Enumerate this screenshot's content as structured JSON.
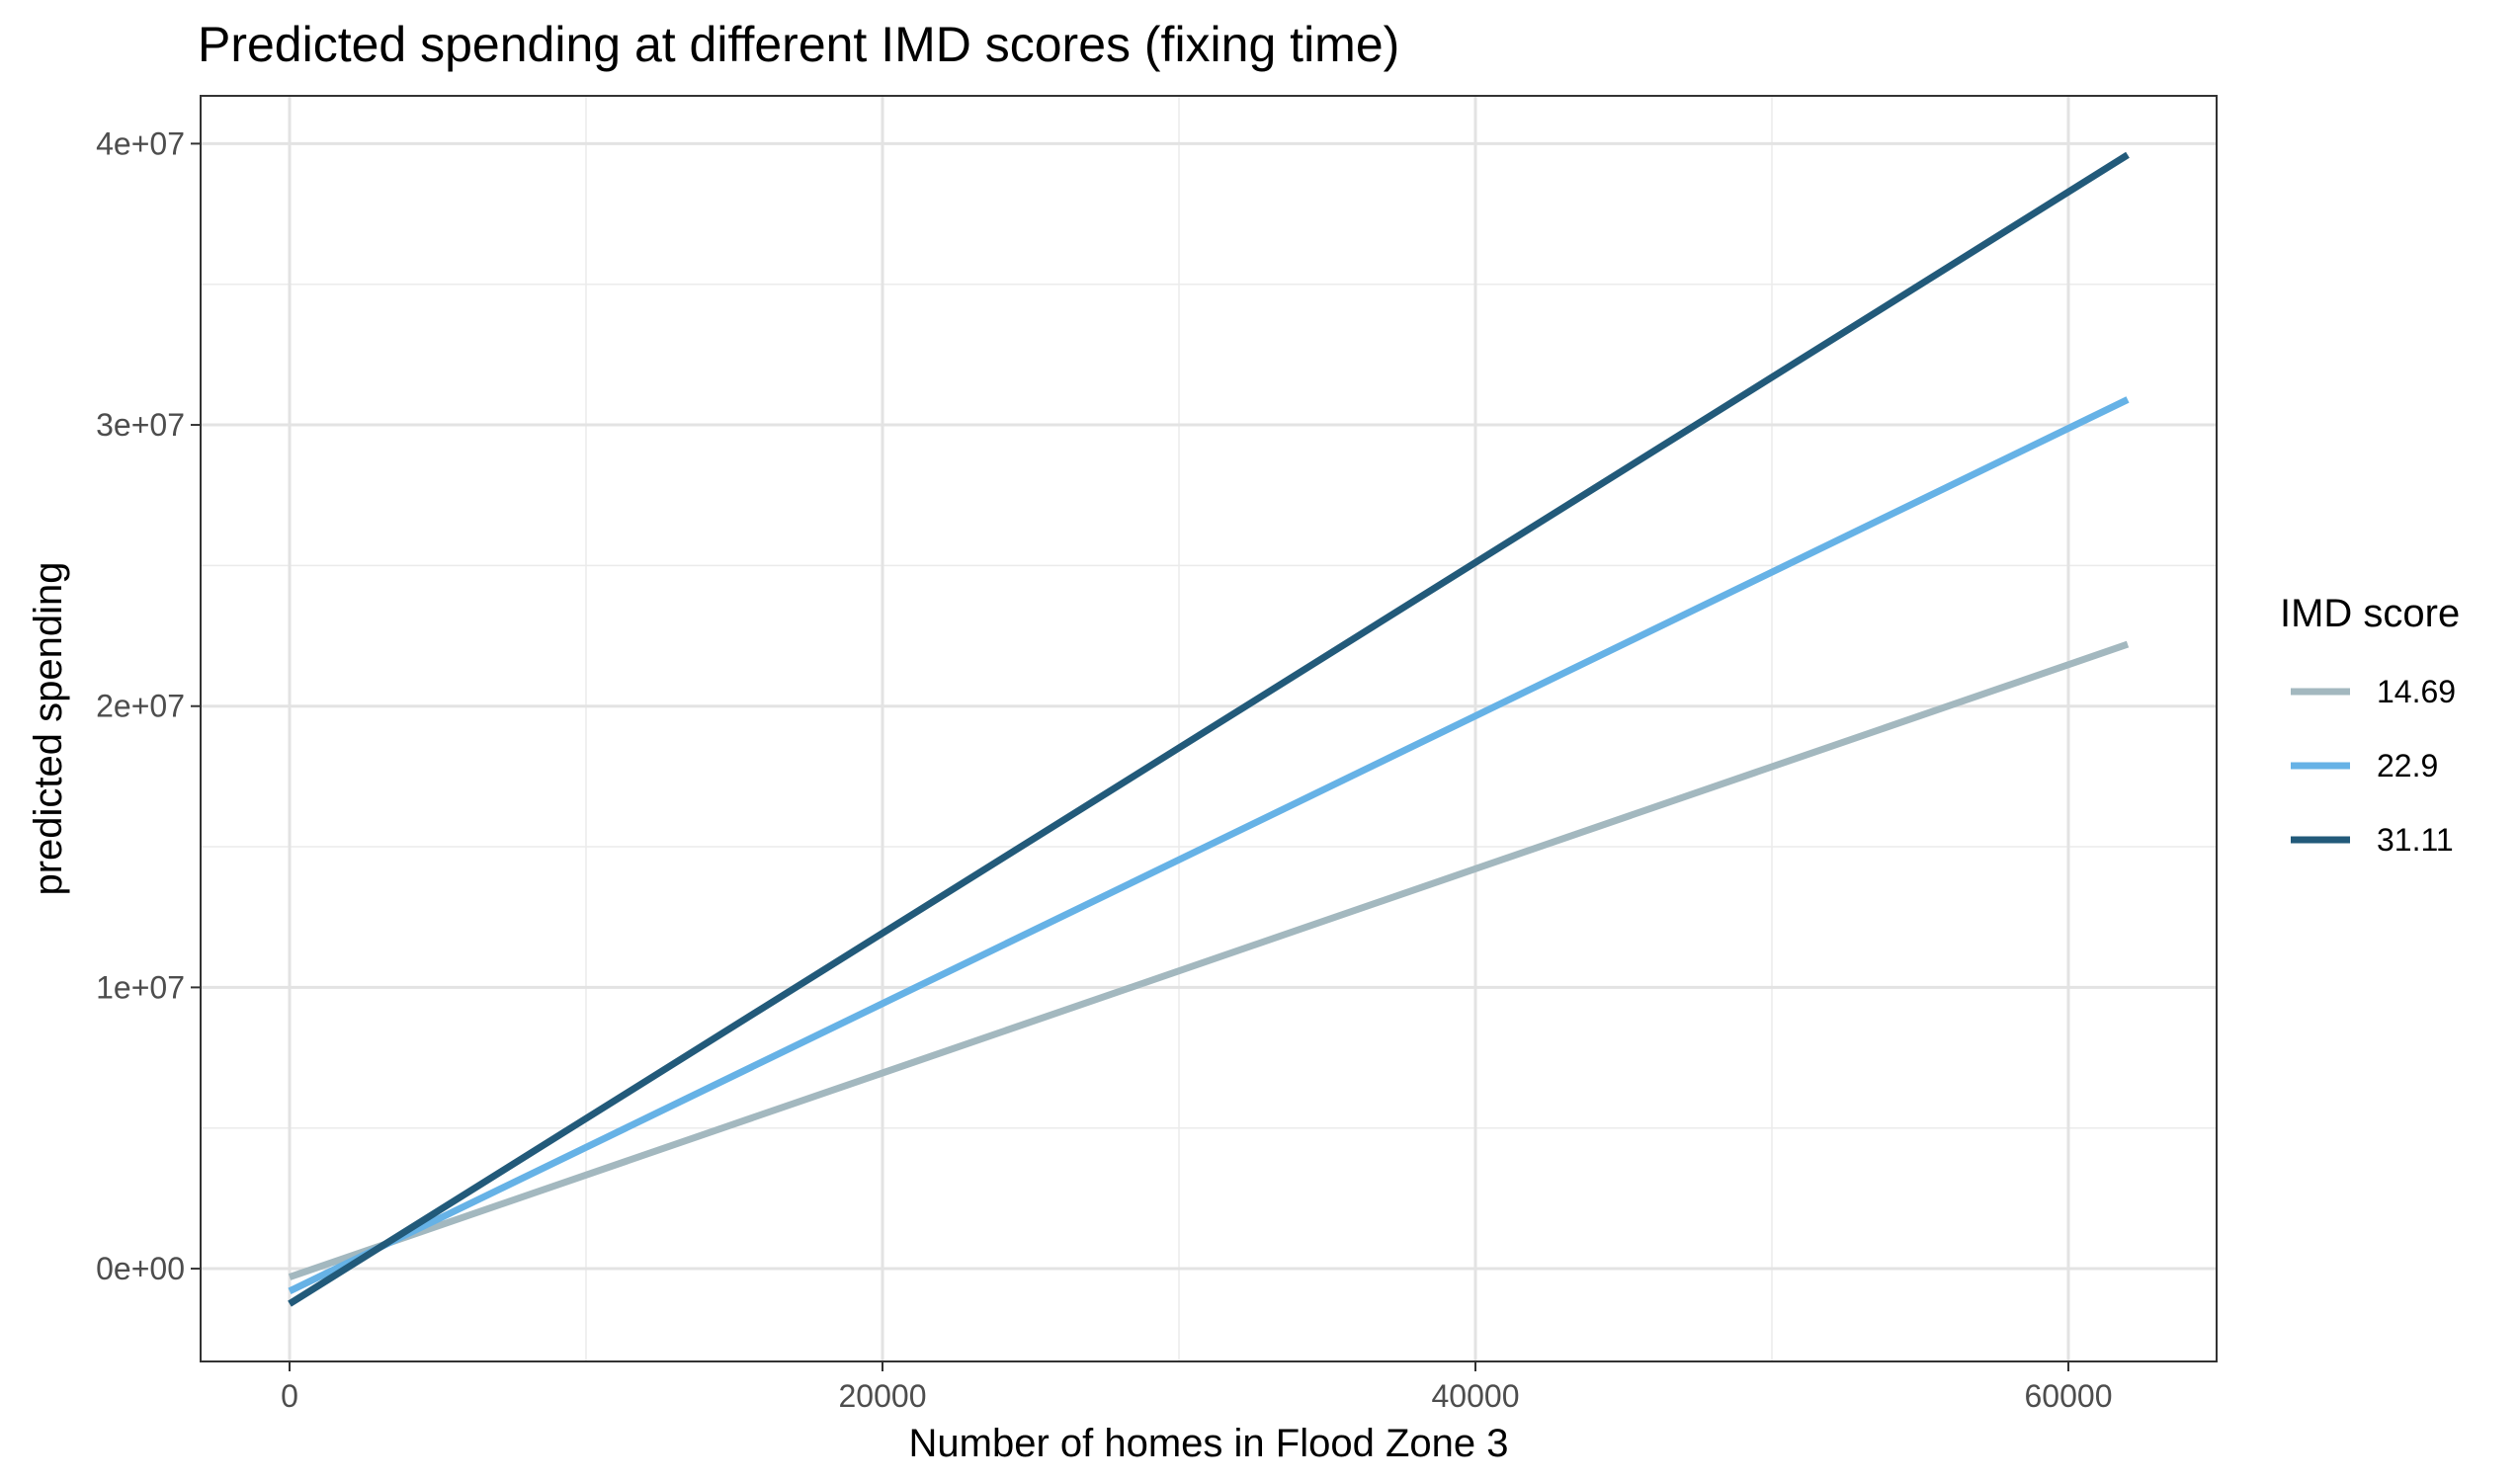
{
  "chart_data": {
    "type": "line",
    "title": "Predicted spending at different IMD scores (fixing time)",
    "xlabel": "Number of homes in Flood Zone 3",
    "ylabel": "predicted spending",
    "xlim": [
      -3000,
      65000
    ],
    "ylim": [
      -3300000,
      41700000
    ],
    "x_ticks": [
      0,
      20000,
      40000,
      60000
    ],
    "x_tick_labels": [
      "0",
      "20000",
      "40000",
      "60000"
    ],
    "x_minor_ticks": [
      10000,
      30000,
      50000
    ],
    "y_ticks": [
      0,
      10000000,
      20000000,
      30000000,
      40000000
    ],
    "y_tick_labels": [
      "0e+00",
      "1e+07",
      "2e+07",
      "3e+07",
      "4e+07"
    ],
    "y_minor_ticks": [
      5000000,
      15000000,
      25000000,
      35000000
    ],
    "grid": true,
    "legend": {
      "title": "IMD score",
      "position": "right"
    },
    "series": [
      {
        "name": "14.69",
        "color": "#a3b8bf",
        "x": [
          0,
          62000
        ],
        "y": [
          -300000,
          22200000
        ]
      },
      {
        "name": "22.9",
        "color": "#66b2e6",
        "x": [
          0,
          62000
        ],
        "y": [
          -800000,
          30900000
        ]
      },
      {
        "name": "31.11",
        "color": "#225a7a",
        "x": [
          0,
          62000
        ],
        "y": [
          -1250000,
          39600000
        ]
      }
    ]
  }
}
